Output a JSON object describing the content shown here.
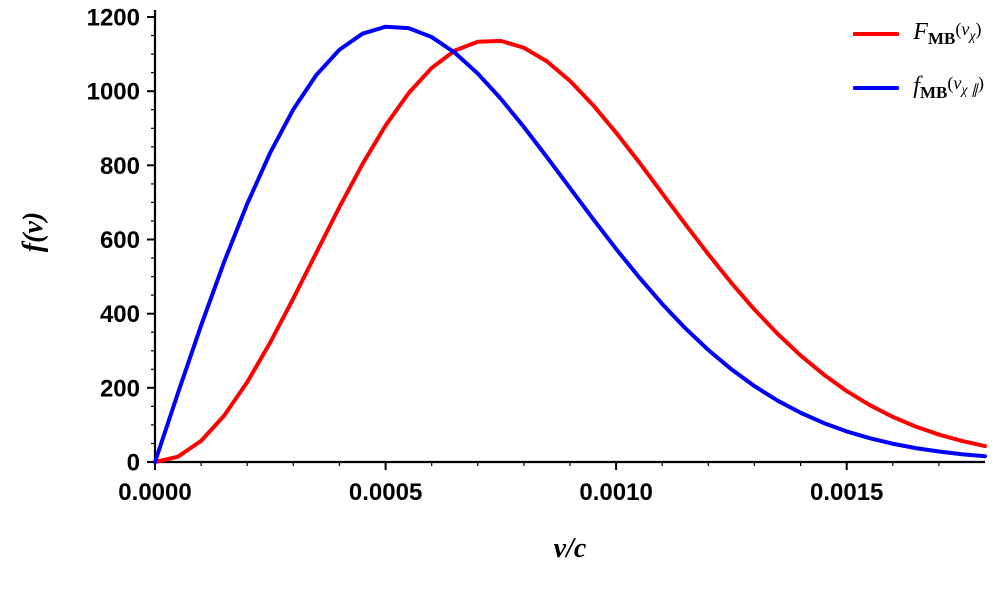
{
  "chart_data": {
    "type": "line",
    "title": "",
    "xlabel": "v/c",
    "ylabel": "f(v)",
    "xlim": [
      0,
      0.0018
    ],
    "ylim": [
      0,
      1200
    ],
    "xticks": [
      0,
      0.0005,
      0.001,
      0.0015
    ],
    "xtick_labels": [
      "0.0000",
      "0.0005",
      "0.0010",
      "0.0015"
    ],
    "yticks": [
      0,
      200,
      400,
      600,
      800,
      1000,
      1200
    ],
    "ytick_labels": [
      "0",
      "200",
      "400",
      "600",
      "800",
      "1000",
      "1200"
    ],
    "xminor_step": 0.0001,
    "yminor_step": 50,
    "grid": false,
    "legend_position": "top-right",
    "axis_color": "#000000",
    "x": [
      0,
      5e-05,
      0.0001,
      0.00015,
      0.0002,
      0.00025,
      0.0003,
      0.00035,
      0.0004,
      0.00045,
      0.0005,
      0.00055,
      0.0006,
      0.00065,
      0.0007,
      0.00075,
      0.0008,
      0.00085,
      0.0009,
      0.00095,
      0.001,
      0.00105,
      0.0011,
      0.00115,
      0.0012,
      0.00125,
      0.0013,
      0.00135,
      0.0014,
      0.00145,
      0.0015,
      0.00155,
      0.0016,
      0.00165,
      0.0017,
      0.00175,
      0.0018
    ],
    "series": [
      {
        "name": "F_MB(v_χ)",
        "color": "#ff0000",
        "values": [
          0,
          14.4,
          56.9,
          125.1,
          215.3,
          322.5,
          441.0,
          564.7,
          687.4,
          803.4,
          907.3,
          994.8,
          1062.7,
          1109.2,
          1133.4,
          1135.6,
          1117.1,
          1080.3,
          1027.8,
          962.5,
          888.1,
          808.2,
          724.6,
          641.4,
          560.2,
          483.0,
          411.2,
          345.8,
          287.4,
          236.1,
          191.2,
          153.6,
          121.7,
          95.4,
          74.0,
          56.7,
          43.0
        ]
      },
      {
        "name": "f_MB(v_χ∥)",
        "color": "#0000ff",
        "values": [
          0,
          186.8,
          368.3,
          539.7,
          696.3,
          834.4,
          950.9,
          1043.8,
          1111.8,
          1155.0,
          1173.8,
          1170.1,
          1145.9,
          1104.0,
          1047.5,
          979.5,
          903.4,
          822.2,
          738.8,
          655.5,
          574.5,
          498.0,
          426.1,
          360.8,
          302.0,
          250.0,
          204.7,
          165.7,
          132.8,
          105.3,
          82.5,
          64.1,
          49.2,
          37.4,
          28.2,
          21.0,
          15.5
        ]
      }
    ]
  },
  "legend": {
    "items": [
      {
        "fname": "F",
        "fsub": "MB",
        "open": "(",
        "arg": "v",
        "argsub": "χ",
        "close": ")",
        "color": "#ff0000"
      },
      {
        "fname": "f",
        "fsub": "MB",
        "open": "(",
        "arg": "v",
        "argsub": "χ ∥",
        "close": ")",
        "color": "#0000ff"
      }
    ]
  }
}
